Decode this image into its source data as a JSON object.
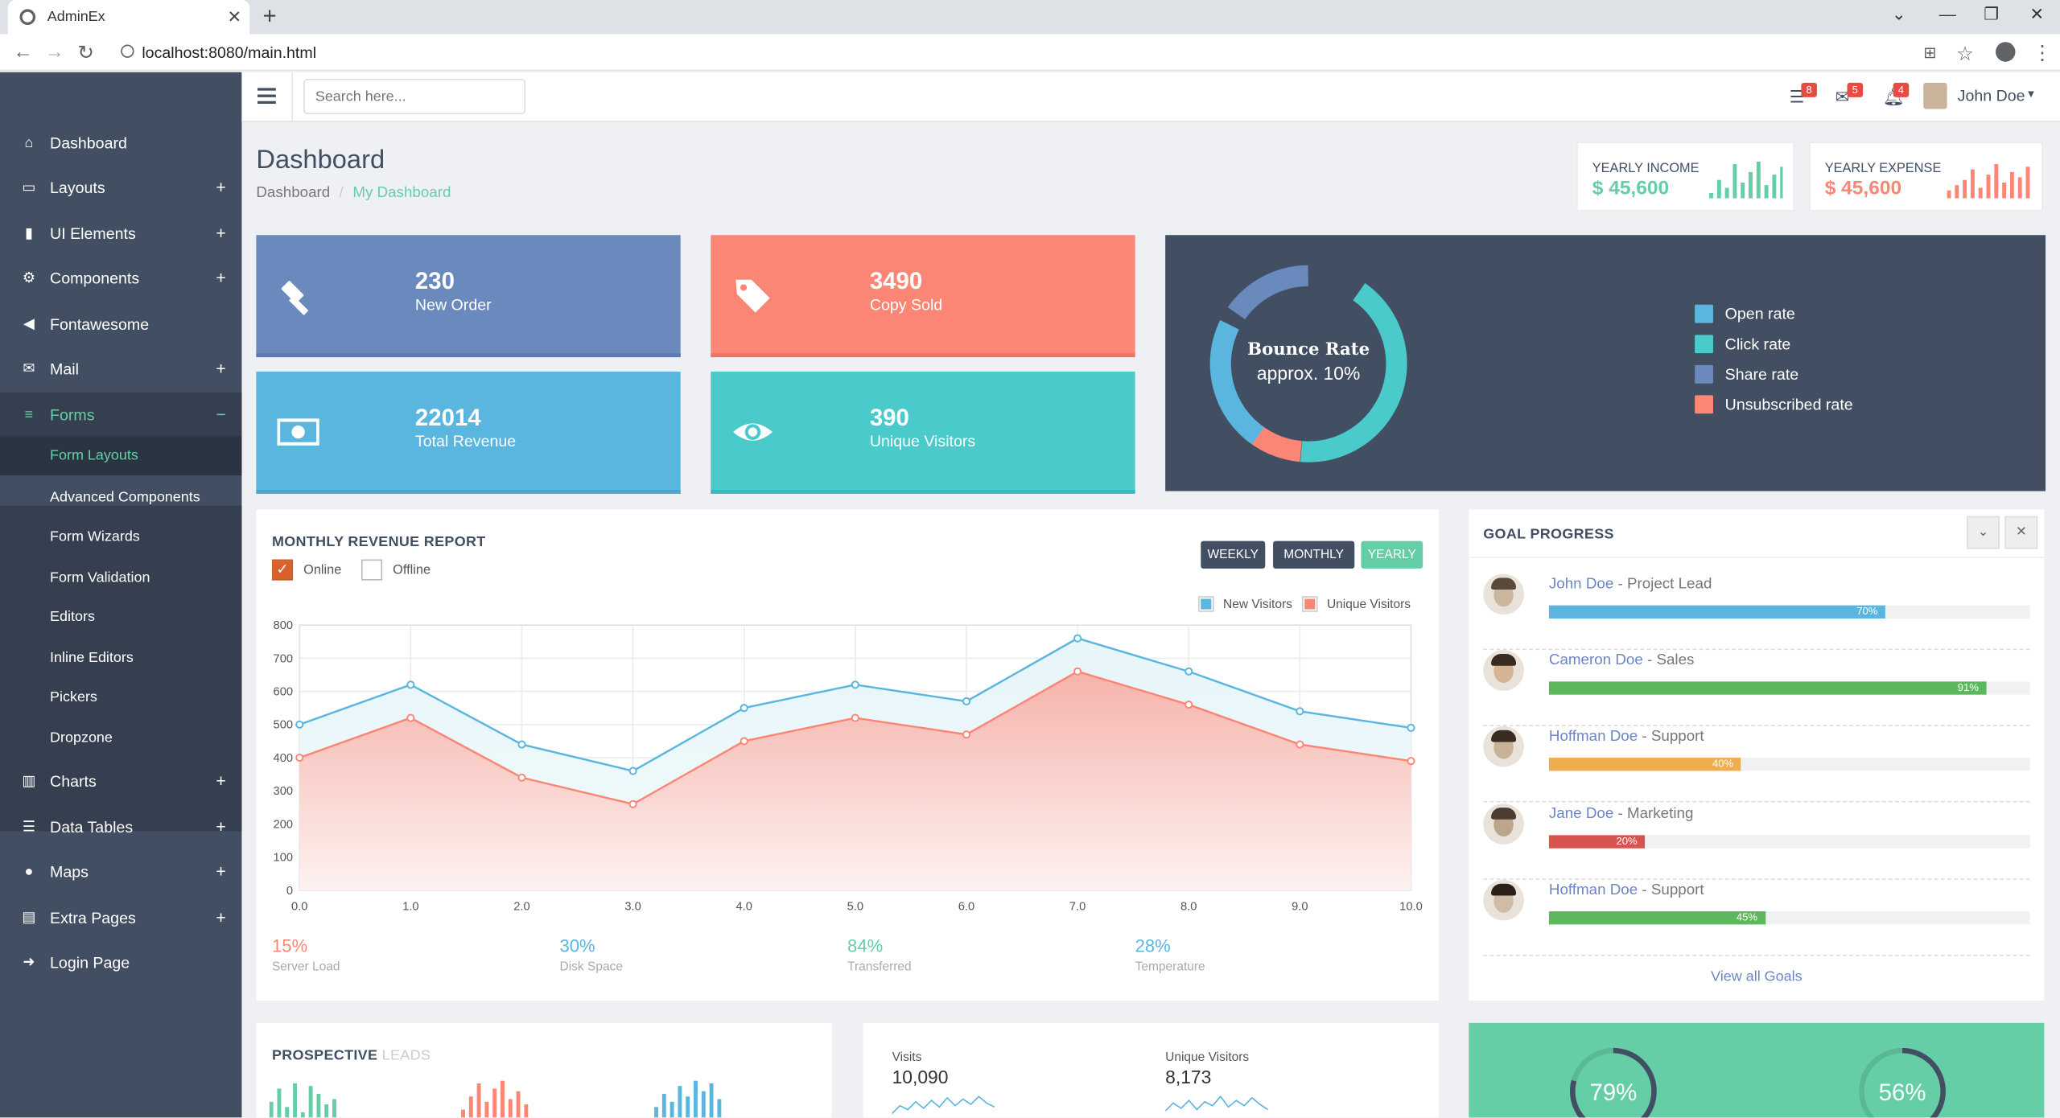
{
  "browser": {
    "tab_title": "AdminEx",
    "url": "localhost:8080/main.html"
  },
  "sidebar": {
    "items": [
      {
        "label": "Dashboard",
        "icon": "home-icon",
        "expandable": false
      },
      {
        "label": "Layouts",
        "icon": "laptop-icon",
        "expandable": true
      },
      {
        "label": "UI Elements",
        "icon": "book-icon",
        "expandable": true
      },
      {
        "label": "Components",
        "icon": "cogs-icon",
        "expandable": true
      },
      {
        "label": "Fontawesome",
        "icon": "bullhorn-icon",
        "expandable": false
      },
      {
        "label": "Mail",
        "icon": "envelope-icon",
        "expandable": true
      },
      {
        "label": "Forms",
        "icon": "tasks-icon",
        "expandable": true,
        "expanded": true
      }
    ],
    "forms_submenu": [
      "Form Layouts",
      "Advanced Components",
      "Form Wizards",
      "Form Validation",
      "Editors",
      "Inline Editors",
      "Pickers",
      "Dropzone"
    ],
    "items_after": [
      {
        "label": "Charts",
        "icon": "bar-chart-icon",
        "expandable": true
      },
      {
        "label": "Data Tables",
        "icon": "th-list-icon",
        "expandable": true
      },
      {
        "label": "Maps",
        "icon": "map-marker-icon",
        "expandable": true
      },
      {
        "label": "Extra Pages",
        "icon": "file-icon",
        "expandable": true
      },
      {
        "label": "Login Page",
        "icon": "sign-in-icon",
        "expandable": false
      }
    ],
    "expand_symbol": "+",
    "collapse_symbol": "−"
  },
  "header": {
    "search_placeholder": "Search here...",
    "tasks_count": "8",
    "mail_count": "5",
    "notif_count": "4",
    "user_name": "John Doe"
  },
  "page": {
    "title": "Dashboard",
    "breadcrumb": [
      "Dashboard",
      "My Dashboard"
    ]
  },
  "yearly": {
    "income_label": "YEARLY INCOME",
    "income_value": "$ 45,600",
    "expense_label": "YEARLY EXPENSE",
    "expense_value": "$ 45,600"
  },
  "tiles": [
    {
      "number": "230",
      "label": "New Order",
      "color": "#6a8abe",
      "icon": "gavel-icon"
    },
    {
      "number": "3490",
      "label": "Copy Sold",
      "color": "#fc8675",
      "icon": "tags-icon"
    },
    {
      "number": "22014",
      "label": "Total Revenue",
      "color": "#5ab6df",
      "icon": "money-icon"
    },
    {
      "number": "390",
      "label": "Unique Visitors",
      "color": "#4acacb",
      "icon": "eye-icon"
    }
  ],
  "bounce": {
    "title": "Bounce Rate",
    "subtitle": "approx. 10%",
    "legend": [
      {
        "label": "Open rate",
        "color": "#5ab6df"
      },
      {
        "label": "Click rate",
        "color": "#4acacb"
      },
      {
        "label": "Share rate",
        "color": "#6a8abe"
      },
      {
        "label": "Unsubscribed rate",
        "color": "#fc8675"
      }
    ]
  },
  "revenue": {
    "title": "MONTHLY REVENUE REPORT",
    "online_label": "Online",
    "offline_label": "Offline",
    "buttons": [
      "WEEKLY",
      "MONTHLY",
      "YEARLY"
    ],
    "stats": [
      {
        "value": "15%",
        "label": "Server Load",
        "color": "#fc8675"
      },
      {
        "value": "30%",
        "label": "Disk Space",
        "color": "#5ab6df"
      },
      {
        "value": "84%",
        "label": "Transferred",
        "color": "#65cea7"
      },
      {
        "value": "28%",
        "label": "Temperature",
        "color": "#5ab6df"
      }
    ]
  },
  "chart_data": {
    "type": "area",
    "x": [
      0.0,
      1.0,
      2.0,
      3.0,
      4.0,
      5.0,
      6.0,
      7.0,
      8.0,
      9.0,
      10.0
    ],
    "x_tick_labels": [
      "0.0",
      "1.0",
      "2.0",
      "3.0",
      "4.0",
      "5.0",
      "6.0",
      "7.0",
      "8.0",
      "9.0",
      "10.0"
    ],
    "y_ticks": [
      0,
      100,
      200,
      300,
      400,
      500,
      600,
      700,
      800
    ],
    "ylim": [
      0,
      800
    ],
    "xlim": [
      0,
      10
    ],
    "grid": true,
    "legend_position": "top-right",
    "series": [
      {
        "name": "New Visitors",
        "color": "#5ab6df",
        "values": [
          500,
          620,
          440,
          360,
          550,
          620,
          570,
          760,
          660,
          540,
          490
        ]
      },
      {
        "name": "Unique Visitors",
        "color": "#fc8675",
        "values": [
          400,
          520,
          340,
          260,
          450,
          520,
          470,
          660,
          560,
          440,
          390
        ]
      }
    ]
  },
  "goals": {
    "title": "GOAL PROGRESS",
    "rows": [
      {
        "name": "John Doe",
        "role": " - Project Lead",
        "percent": 70,
        "percent_label": "70%",
        "color": "#5ab6df"
      },
      {
        "name": "Cameron Doe",
        "role": " - Sales",
        "percent": 91,
        "percent_label": "91%",
        "color": "#5cb85c"
      },
      {
        "name": "Hoffman Doe",
        "role": " - Support",
        "percent": 40,
        "percent_label": "40%",
        "color": "#f0ad4e"
      },
      {
        "name": "Jane Doe",
        "role": " - Marketing",
        "percent": 20,
        "percent_label": "20%",
        "color": "#d9534f"
      },
      {
        "name": "Hoffman Doe",
        "role": " - Support",
        "percent": 45,
        "percent_label": "45%",
        "color": "#5cb85c"
      }
    ],
    "view_all": "View all Goals"
  },
  "leads": {
    "title_strong": "PROSPECTIVE",
    "title_light": "LEADS"
  },
  "visits": {
    "visits_label": "Visits",
    "visits_value": "10,090",
    "unique_label": "Unique Visitors",
    "unique_value": "8,173"
  },
  "green_panel": {
    "left_value": "79%",
    "right_value": "56%"
  }
}
